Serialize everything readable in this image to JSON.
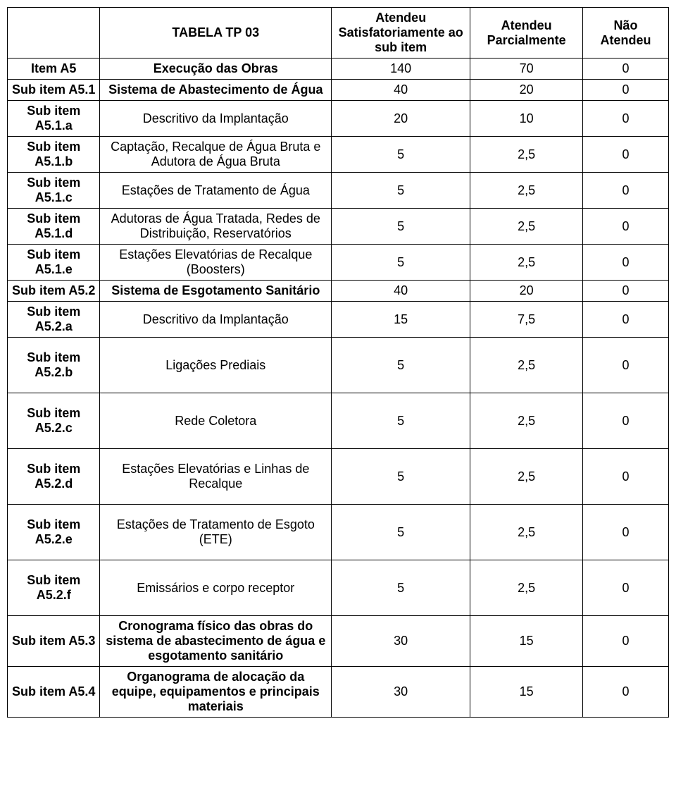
{
  "header": {
    "col2": "TABELA TP 03",
    "col3": "Atendeu Satisfatoriamente ao sub item",
    "col4": "Atendeu Parcialmente",
    "col5": "Não Atendeu"
  },
  "rows": [
    {
      "id": "Item A5",
      "desc": "Execução das Obras",
      "bold": true,
      "v1": "140",
      "v2": "70",
      "v3": "0"
    },
    {
      "id": "Sub item A5.1",
      "desc": "Sistema de Abastecimento de Água",
      "bold": true,
      "v1": "40",
      "v2": "20",
      "v3": "0"
    },
    {
      "id": "Sub item A5.1.a",
      "desc": "Descritivo da Implantação",
      "bold": false,
      "v1": "20",
      "v2": "10",
      "v3": "0"
    },
    {
      "id": "Sub item A5.1.b",
      "desc": "Captação, Recalque de Água Bruta e Adutora de Água Bruta",
      "bold": false,
      "v1": "5",
      "v2": "2,5",
      "v3": "0"
    },
    {
      "id": "Sub item A5.1.c",
      "desc": "Estações de Tratamento de Água",
      "bold": false,
      "v1": "5",
      "v2": "2,5",
      "v3": "0"
    },
    {
      "id": "Sub item A5.1.d",
      "desc": "Adutoras de Água Tratada, Redes de Distribuição, Reservatórios",
      "bold": false,
      "v1": "5",
      "v2": "2,5",
      "v3": "0"
    },
    {
      "id": "Sub item A5.1.e",
      "desc": "Estações Elevatórias de Recalque (Boosters)",
      "bold": false,
      "v1": "5",
      "v2": "2,5",
      "v3": "0"
    },
    {
      "id": "Sub item A5.2",
      "desc": "Sistema de Esgotamento Sanitário",
      "bold": true,
      "v1": "40",
      "v2": "20",
      "v3": "0"
    },
    {
      "id": "Sub item A5.2.a",
      "desc": "Descritivo da Implantação",
      "bold": false,
      "v1": "15",
      "v2": "7,5",
      "v3": "0"
    },
    {
      "id": "Sub item A5.2.b",
      "desc": "Ligações Prediais",
      "bold": false,
      "v1": "5",
      "v2": "2,5",
      "v3": "0",
      "tall": true
    },
    {
      "id": "Sub item A5.2.c",
      "desc": "Rede Coletora",
      "bold": false,
      "v1": "5",
      "v2": "2,5",
      "v3": "0",
      "tall": true
    },
    {
      "id": "Sub item A5.2.d",
      "desc": "Estações Elevatórias e Linhas de Recalque",
      "bold": false,
      "v1": "5",
      "v2": "2,5",
      "v3": "0",
      "tall": true
    },
    {
      "id": "Sub item A5.2.e",
      "desc": "Estações de Tratamento de Esgoto (ETE)",
      "bold": false,
      "v1": "5",
      "v2": "2,5",
      "v3": "0",
      "tall": true
    },
    {
      "id": "Sub item A5.2.f",
      "desc": "Emissários e corpo receptor",
      "bold": false,
      "v1": "5",
      "v2": "2,5",
      "v3": "0",
      "tall": true
    },
    {
      "id": "Sub item A5.3",
      "desc": "Cronograma físico das obras do sistema de abastecimento de água e esgotamento sanitário",
      "bold": true,
      "v1": "30",
      "v2": "15",
      "v3": "0"
    },
    {
      "id": "Sub item A5.4",
      "desc": "Organograma de alocação da equipe, equipamentos e principais materiais",
      "bold": true,
      "v1": "30",
      "v2": "15",
      "v3": "0"
    }
  ]
}
